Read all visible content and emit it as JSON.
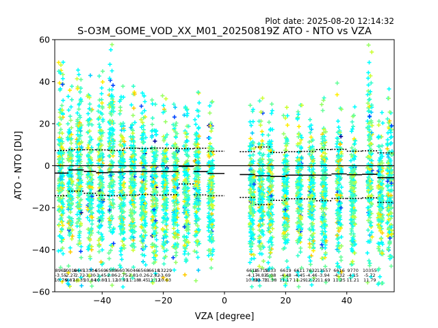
{
  "plot_date": "Plot date: 2025-08-20 12:14:32",
  "chart_data": {
    "type": "scatter",
    "title": "S-O3M_GOME_VOD_XX_M01_20250819Z ATO - NTO vs VZA",
    "xlabel": "VZA [degree]",
    "ylabel": "ATO - NTO [DU]",
    "xlim": [
      -55.5,
      55.5
    ],
    "ylim": [
      -60,
      60
    ],
    "xticks": [
      -40,
      -20,
      0,
      20,
      40
    ],
    "yticks": [
      -60,
      -40,
      -20,
      0,
      20,
      40,
      60
    ],
    "grid": false,
    "zero_line": 0,
    "columns": [
      {
        "vza": -53.5,
        "n": "8969",
        "mean": "-3.55",
        "std": "10.76",
        "ymin": -58,
        "ymax": 50
      },
      {
        "vza": -50.5,
        "n": "10018",
        "mean": "-2.27",
        "std": "9.87",
        "ymin": -58,
        "ymax": 46
      },
      {
        "vza": -47.5,
        "n": "6445",
        "mean": "-2.72",
        "std": "10.35",
        "ymin": -58,
        "ymax": 48
      },
      {
        "vza": -44.0,
        "n": "13304",
        "mean": "-3.30",
        "std": "10.84",
        "ymin": -58,
        "ymax": 45
      },
      {
        "vza": -40.5,
        "n": "6569",
        "mean": "-3.45",
        "std": "10.80",
        "ymin": -58,
        "ymax": 48
      },
      {
        "vza": -37.0,
        "n": "6588",
        "mean": "-2.86",
        "std": "11.12",
        "ymin": -58,
        "ymax": 59
      },
      {
        "vza": -33.5,
        "n": "6607",
        "mean": "-2.75",
        "std": "10.91",
        "ymin": -58,
        "ymax": 38
      },
      {
        "vza": -30.0,
        "n": "6046",
        "mean": "-2.81",
        "std": "11.18",
        "ymin": -58,
        "ymax": 38
      },
      {
        "vza": -26.5,
        "n": "6568",
        "mean": "-0.26",
        "std": "8.45",
        "ymin": -56,
        "ymax": 37
      },
      {
        "vza": -23.0,
        "n": "6618",
        "mean": "-2.82",
        "std": "11.12",
        "ymin": -58,
        "ymax": 32
      },
      {
        "vza": -19.5,
        "n": "13229",
        "mean": "-3.69",
        "std": "10.63",
        "ymin": -58,
        "ymax": 35
      },
      {
        "vza": -16.0,
        "n": "",
        "mean": "",
        "std": "",
        "ymin": -56,
        "ymax": 31
      },
      {
        "vza": -12.5,
        "n": "",
        "mean": "",
        "std": "",
        "ymin": -56,
        "ymax": 30
      },
      {
        "vza": -9.0,
        "n": "",
        "mean": "",
        "std": "",
        "ymin": -56,
        "ymax": 35
      },
      {
        "vza": -4.5,
        "n": "",
        "mean": "",
        "std": "",
        "ymin": -56,
        "ymax": 31
      },
      {
        "vza": 9.0,
        "n": "6614",
        "mean": "-4.17",
        "std": "10.88",
        "ymin": -58,
        "ymax": 29
      },
      {
        "vza": 12.0,
        "n": "15715",
        "mean": "-4.83",
        "std": "13.73",
        "ymin": -58,
        "ymax": 33
      },
      {
        "vza": 15.0,
        "n": "5533",
        "mean": "-5.08",
        "std": "11.38",
        "ymin": -58,
        "ymax": 35
      },
      {
        "vza": 20.0,
        "n": "6619",
        "mean": "-4.48",
        "std": "11.17",
        "ymin": -58,
        "ymax": 29
      },
      {
        "vza": 24.5,
        "n": "6611",
        "mean": "-4.45",
        "std": "11.29",
        "ymin": -58,
        "ymax": 30
      },
      {
        "vza": 28.5,
        "n": "7632",
        "mean": "-4.46",
        "std": "12.22",
        "ymin": -58,
        "ymax": 33
      },
      {
        "vza": 32.5,
        "n": "13557",
        "mean": "-3.94",
        "std": "11.69",
        "ymin": -58,
        "ymax": 34
      },
      {
        "vza": 37.5,
        "n": "6616",
        "mean": "-4.32",
        "std": "11.25",
        "ymin": -58,
        "ymax": 40
      },
      {
        "vza": 42.0,
        "n": "9770",
        "mean": "-4.15",
        "std": "11.21",
        "ymin": -58,
        "ymax": 30
      },
      {
        "vza": 47.5,
        "n": "10355",
        "mean": "-5.72",
        "std": "11.79",
        "ymin": -58,
        "ymax": 58
      },
      {
        "vza": 51.0,
        "n": "",
        "mean": "",
        "std": "",
        "ymin": -58,
        "ymax": 27
      },
      {
        "vza": 54.0,
        "n": "",
        "mean": "",
        "std": "",
        "ymin": -58,
        "ymax": 41
      }
    ],
    "mean_segments": [
      {
        "x0": -55.5,
        "x1": -51,
        "y": -3.5
      },
      {
        "x0": -51,
        "x1": -46,
        "y": -2.0
      },
      {
        "x0": -46,
        "x1": -42,
        "y": -2.7
      },
      {
        "x0": -42,
        "x1": -38,
        "y": -3.3
      },
      {
        "x0": -38,
        "x1": -33,
        "y": -3.0
      },
      {
        "x0": -33,
        "x1": -28,
        "y": -2.8
      },
      {
        "x0": -28,
        "x1": -24,
        "y": -2.8
      },
      {
        "x0": -24,
        "x1": -19.5,
        "y": -2.8
      },
      {
        "x0": -19.5,
        "x1": -15,
        "y": -2.8
      },
      {
        "x0": -15,
        "x1": -10,
        "y": -0.3
      },
      {
        "x0": -10,
        "x1": -5.5,
        "y": -2.8
      },
      {
        "x0": -5.5,
        "x1": 0,
        "y": -3.7
      },
      {
        "x0": 5,
        "x1": 10,
        "y": -4.2
      },
      {
        "x0": 10,
        "x1": 15,
        "y": -4.8
      },
      {
        "x0": 15,
        "x1": 20,
        "y": -5.1
      },
      {
        "x0": 20,
        "x1": 25,
        "y": -4.5
      },
      {
        "x0": 25,
        "x1": 30,
        "y": -4.5
      },
      {
        "x0": 30,
        "x1": 35,
        "y": -4.5
      },
      {
        "x0": 35,
        "x1": 40,
        "y": -3.9
      },
      {
        "x0": 40,
        "x1": 45,
        "y": -4.3
      },
      {
        "x0": 45,
        "x1": 50,
        "y": -4.1
      },
      {
        "x0": 50,
        "x1": 55.5,
        "y": -5.7
      }
    ],
    "std_upper": [
      {
        "x0": -55.5,
        "x1": -51,
        "y": 7.2
      },
      {
        "x0": -51,
        "x1": -46,
        "y": 7.6
      },
      {
        "x0": -46,
        "x1": -42,
        "y": 7.6
      },
      {
        "x0": -42,
        "x1": -38,
        "y": 7.5
      },
      {
        "x0": -38,
        "x1": -33,
        "y": 7.3
      },
      {
        "x0": -33,
        "x1": -28,
        "y": 8.3
      },
      {
        "x0": -28,
        "x1": -24,
        "y": 8.2
      },
      {
        "x0": -24,
        "x1": -19.5,
        "y": 8.4
      },
      {
        "x0": -19.5,
        "x1": -15,
        "y": 8.3
      },
      {
        "x0": -15,
        "x1": -10,
        "y": 8.1
      },
      {
        "x0": -10,
        "x1": -5.5,
        "y": 8.3
      },
      {
        "x0": -5.5,
        "x1": 0,
        "y": 6.9
      },
      {
        "x0": 5,
        "x1": 10,
        "y": 6.7
      },
      {
        "x0": 10,
        "x1": 15,
        "y": 8.9
      },
      {
        "x0": 15,
        "x1": 20,
        "y": 6.3
      },
      {
        "x0": 20,
        "x1": 25,
        "y": 6.7
      },
      {
        "x0": 25,
        "x1": 30,
        "y": 6.8
      },
      {
        "x0": 30,
        "x1": 35,
        "y": 7.7
      },
      {
        "x0": 35,
        "x1": 40,
        "y": 7.8
      },
      {
        "x0": 40,
        "x1": 45,
        "y": 6.9
      },
      {
        "x0": 45,
        "x1": 50,
        "y": 7.1
      },
      {
        "x0": 50,
        "x1": 55.5,
        "y": 6.1
      }
    ],
    "std_lower": [
      {
        "x0": -55.5,
        "x1": -51,
        "y": -14.3
      },
      {
        "x0": -51,
        "x1": -46,
        "y": -12.1
      },
      {
        "x0": -46,
        "x1": -42,
        "y": -13.1
      },
      {
        "x0": -42,
        "x1": -38,
        "y": -14.1
      },
      {
        "x0": -38,
        "x1": -33,
        "y": -14.3
      },
      {
        "x0": -33,
        "x1": -28,
        "y": -14.0
      },
      {
        "x0": -28,
        "x1": -24,
        "y": -13.7
      },
      {
        "x0": -24,
        "x1": -19.5,
        "y": -14.0
      },
      {
        "x0": -19.5,
        "x1": -15,
        "y": -13.8
      },
      {
        "x0": -15,
        "x1": -10,
        "y": -8.7
      },
      {
        "x0": -10,
        "x1": -5.5,
        "y": -13.9
      },
      {
        "x0": -5.5,
        "x1": 0,
        "y": -14.3
      },
      {
        "x0": 5,
        "x1": 10,
        "y": -15.1
      },
      {
        "x0": 10,
        "x1": 15,
        "y": -18.5
      },
      {
        "x0": 15,
        "x1": 20,
        "y": -16.5
      },
      {
        "x0": 20,
        "x1": 25,
        "y": -15.7
      },
      {
        "x0": 25,
        "x1": 30,
        "y": -15.8
      },
      {
        "x0": 30,
        "x1": 35,
        "y": -16.7
      },
      {
        "x0": 35,
        "x1": 40,
        "y": -15.6
      },
      {
        "x0": 40,
        "x1": 45,
        "y": -15.6
      },
      {
        "x0": 45,
        "x1": 50,
        "y": -15.3
      },
      {
        "x0": 50,
        "x1": 55.5,
        "y": -17.5
      }
    ],
    "colors": {
      "scatter_palette": [
        "#00ffff",
        "#33ffcc",
        "#66ff99",
        "#99ff66",
        "#ccff33",
        "#ffee00",
        "#ffcc00",
        "#00ccff",
        "#0044ff",
        "#000099"
      ],
      "mean_line": "#000000",
      "zero_line": "#000000",
      "std_line": "#000000"
    }
  }
}
